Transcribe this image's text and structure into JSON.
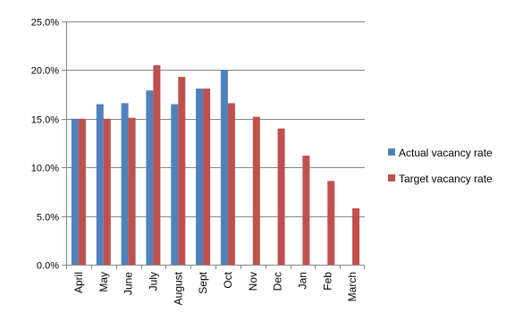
{
  "chart_data": {
    "type": "bar",
    "categories": [
      "April",
      "May",
      "June",
      "July",
      "August",
      "Sept",
      "Oct",
      "Nov",
      "Dec",
      "Jan",
      "Feb",
      "March"
    ],
    "series": [
      {
        "name": "Actual vacancy rate",
        "color": "#4f81bd",
        "values": [
          15.0,
          16.5,
          16.6,
          17.9,
          16.5,
          18.1,
          20.0,
          null,
          null,
          null,
          null,
          null
        ]
      },
      {
        "name": "Target vacancy rate",
        "color": "#c0504d",
        "values": [
          15.0,
          15.0,
          15.1,
          20.5,
          19.3,
          18.1,
          16.6,
          15.2,
          14.0,
          11.2,
          8.6,
          5.8
        ]
      }
    ],
    "ylim": [
      0,
      25
    ],
    "yticks": [
      "0.0%",
      "5.0%",
      "10.0%",
      "15.0%",
      "20.0%",
      "25.0%"
    ],
    "ytick_values": [
      0,
      5,
      10,
      15,
      20,
      25
    ],
    "xlabel": "",
    "ylabel": "",
    "title": "",
    "grid": true,
    "legend_position": "right"
  }
}
